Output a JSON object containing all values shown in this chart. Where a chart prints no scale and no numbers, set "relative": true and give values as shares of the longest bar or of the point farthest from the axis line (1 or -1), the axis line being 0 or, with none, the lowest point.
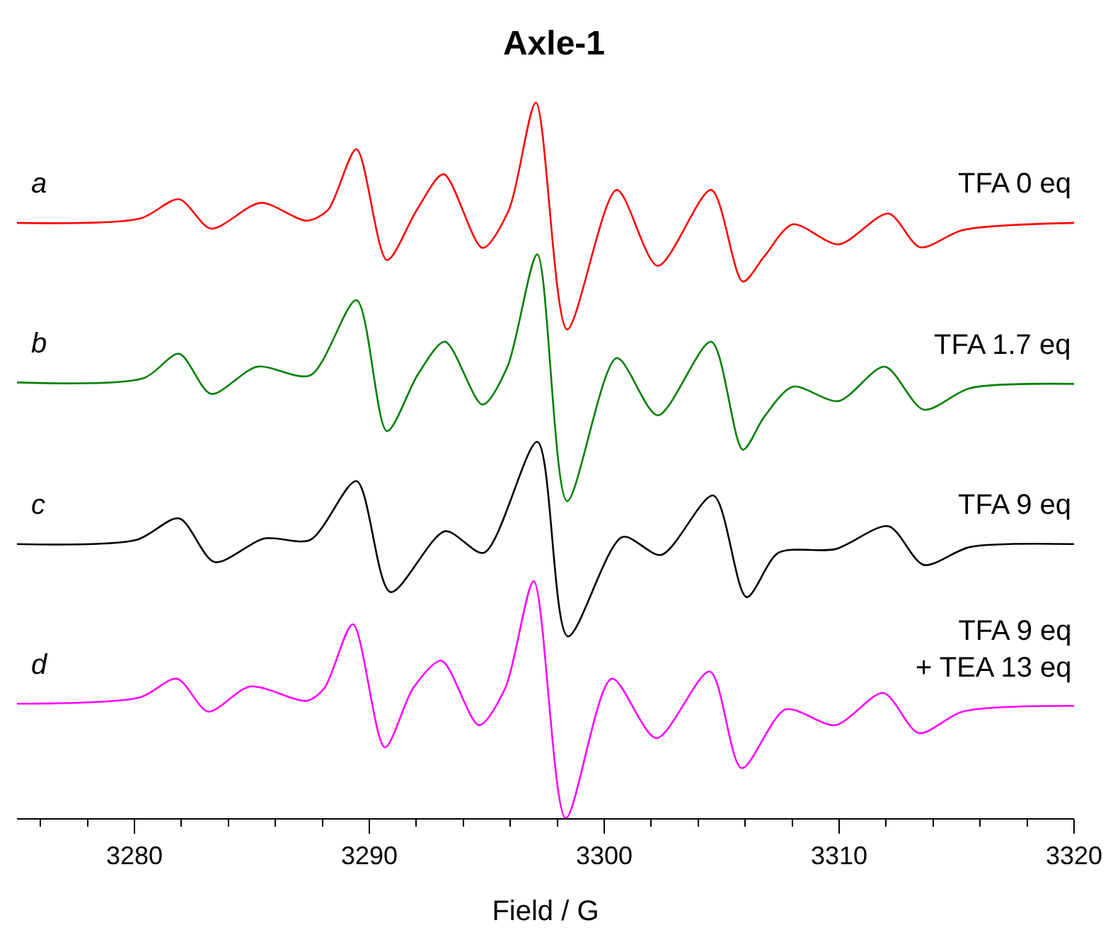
{
  "chart_data": {
    "type": "line",
    "title": "Axle-1",
    "xlabel": "Field / G",
    "relative": true,
    "xlim": [
      3275,
      3320
    ],
    "xticks": [
      {
        "value": 3276,
        "label": null
      },
      {
        "value": 3278,
        "label": null
      },
      3280,
      {
        "value": 3282,
        "label": null
      },
      {
        "value": 3284,
        "label": null
      },
      {
        "value": 3286,
        "label": null
      },
      {
        "value": 3288,
        "label": null
      },
      3290,
      {
        "value": 3292,
        "label": null
      },
      {
        "value": 3294,
        "label": null
      },
      {
        "value": 3296,
        "label": null
      },
      {
        "value": 3298,
        "label": null
      },
      3300,
      {
        "value": 3302,
        "label": null
      },
      {
        "value": 3304,
        "label": null
      },
      {
        "value": 3306,
        "label": null
      },
      {
        "value": 3308,
        "label": null
      },
      3310,
      {
        "value": 3312,
        "label": null
      },
      {
        "value": 3314,
        "label": null
      },
      {
        "value": 3316,
        "label": null
      },
      {
        "value": 3318,
        "label": null
      },
      3320
    ],
    "tick_labels": "x",
    "grid": false,
    "legend": false,
    "marker": "none",
    "line_style": "solid",
    "series": [
      {
        "name": "TFA 0 eq",
        "color": "#ff0000",
        "x": [
          3275.0,
          3280.24,
          3281.9,
          3283.26,
          3285.37,
          3287.34,
          3288.24,
          3289.45,
          3290.75,
          3292.02,
          3293.16,
          3294.82,
          3295.94,
          3297.09,
          3298.42,
          3300.53,
          3302.28,
          3304.55,
          3305.9,
          3306.81,
          3308.02,
          3309.98,
          3312.1,
          3313.45,
          3315.27,
          3320.0
        ],
        "values": [
          0.832,
          0.838,
          0.865,
          0.824,
          0.86,
          0.835,
          0.85,
          0.935,
          0.78,
          0.85,
          0.9,
          0.797,
          0.85,
          1.0,
          0.683,
          0.878,
          0.772,
          0.878,
          0.75,
          0.785,
          0.83,
          0.802,
          0.845,
          0.798,
          0.822,
          0.832
        ]
      },
      {
        "name": "TFA 1.7 eq",
        "color": "#008000",
        "x": [
          3275.0,
          3280.39,
          3281.9,
          3283.26,
          3285.22,
          3287.49,
          3289.45,
          3290.75,
          3292.08,
          3293.22,
          3294.82,
          3295.88,
          3297.15,
          3298.42,
          3300.53,
          3302.28,
          3304.55,
          3305.9,
          3306.81,
          3308.02,
          3309.98,
          3311.94,
          3313.6,
          3315.57,
          3320.0
        ],
        "values": [
          0.609,
          0.615,
          0.649,
          0.593,
          0.631,
          0.619,
          0.724,
          0.541,
          0.621,
          0.666,
          0.578,
          0.631,
          0.788,
          0.443,
          0.643,
          0.563,
          0.666,
          0.515,
          0.561,
          0.603,
          0.583,
          0.631,
          0.571,
          0.601,
          0.607
        ]
      },
      {
        "name": "TFA 9 eq",
        "color": "#000000",
        "x": [
          3275.0,
          3280.09,
          3281.9,
          3283.41,
          3285.53,
          3287.49,
          3289.45,
          3290.9,
          3293.22,
          3294.88,
          3297.15,
          3298.45,
          3300.77,
          3302.43,
          3304.64,
          3306.06,
          3307.42,
          3309.84,
          3312.1,
          3313.6,
          3315.57,
          3320.0
        ],
        "values": [
          0.383,
          0.389,
          0.419,
          0.358,
          0.391,
          0.389,
          0.471,
          0.316,
          0.401,
          0.371,
          0.526,
          0.254,
          0.393,
          0.368,
          0.451,
          0.309,
          0.371,
          0.376,
          0.408,
          0.354,
          0.379,
          0.383
        ]
      },
      {
        "name": "TFA 9 eq\n+ TEA 13 eq",
        "color": "#ff00ff",
        "x": [
          3275.0,
          3280.24,
          3281.81,
          3283.14,
          3284.92,
          3287.34,
          3288.09,
          3289.3,
          3290.66,
          3291.87,
          3293.07,
          3294.67,
          3295.79,
          3297.0,
          3298.36,
          3300.32,
          3302.22,
          3304.49,
          3305.85,
          3307.72,
          3309.84,
          3311.88,
          3313.39,
          3315.27,
          3320.0
        ],
        "values": [
          0.16,
          0.169,
          0.195,
          0.149,
          0.184,
          0.164,
          0.182,
          0.271,
          0.099,
          0.182,
          0.22,
          0.13,
          0.182,
          0.331,
          0.0,
          0.195,
          0.112,
          0.205,
          0.07,
          0.152,
          0.13,
          0.175,
          0.119,
          0.149,
          0.157
        ]
      }
    ],
    "annotations": [
      "a",
      "b",
      "c",
      "d"
    ]
  }
}
